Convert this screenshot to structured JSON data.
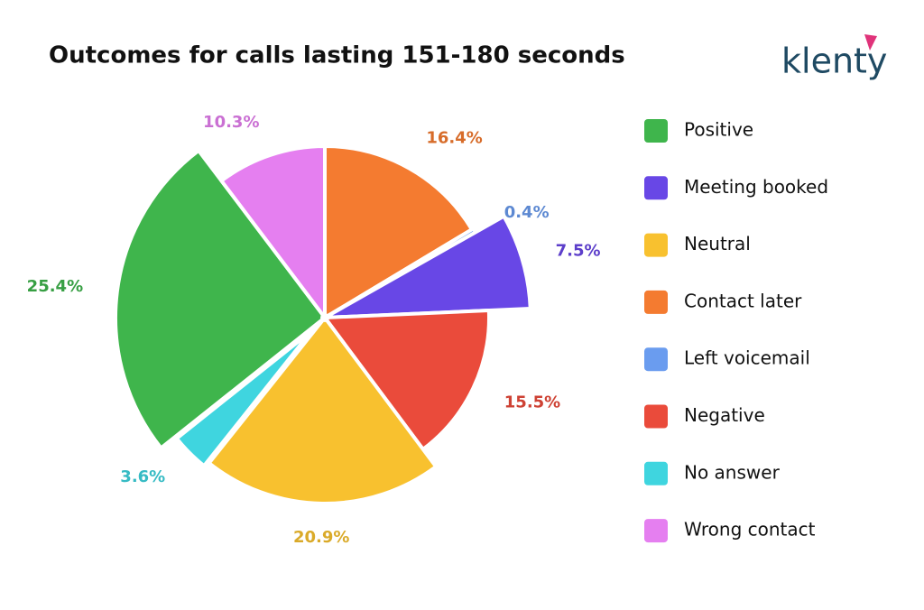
{
  "chart_data": {
    "type": "pie",
    "title": "Outcomes for calls lasting 151-180 seconds",
    "logo": "klenty",
    "categories": [
      "Positive",
      "Meeting booked",
      "Neutral",
      "Contact later",
      "Left voicemail",
      "Negative",
      "No answer",
      "Wrong contact"
    ],
    "values": [
      25.4,
      7.5,
      20.9,
      16.4,
      0.4,
      15.5,
      3.6,
      10.3
    ],
    "value_labels": [
      "25.4%",
      "7.5%",
      "20.9%",
      "16.4%",
      "0.4%",
      "15.5%",
      "3.6%",
      "10.3%"
    ],
    "colors": [
      "#3fb54c",
      "#6847e6",
      "#f8c12f",
      "#f47b30",
      "#6a9cef",
      "#ea4b3b",
      "#3fd5df",
      "#e57ff0"
    ],
    "legend": "right"
  }
}
